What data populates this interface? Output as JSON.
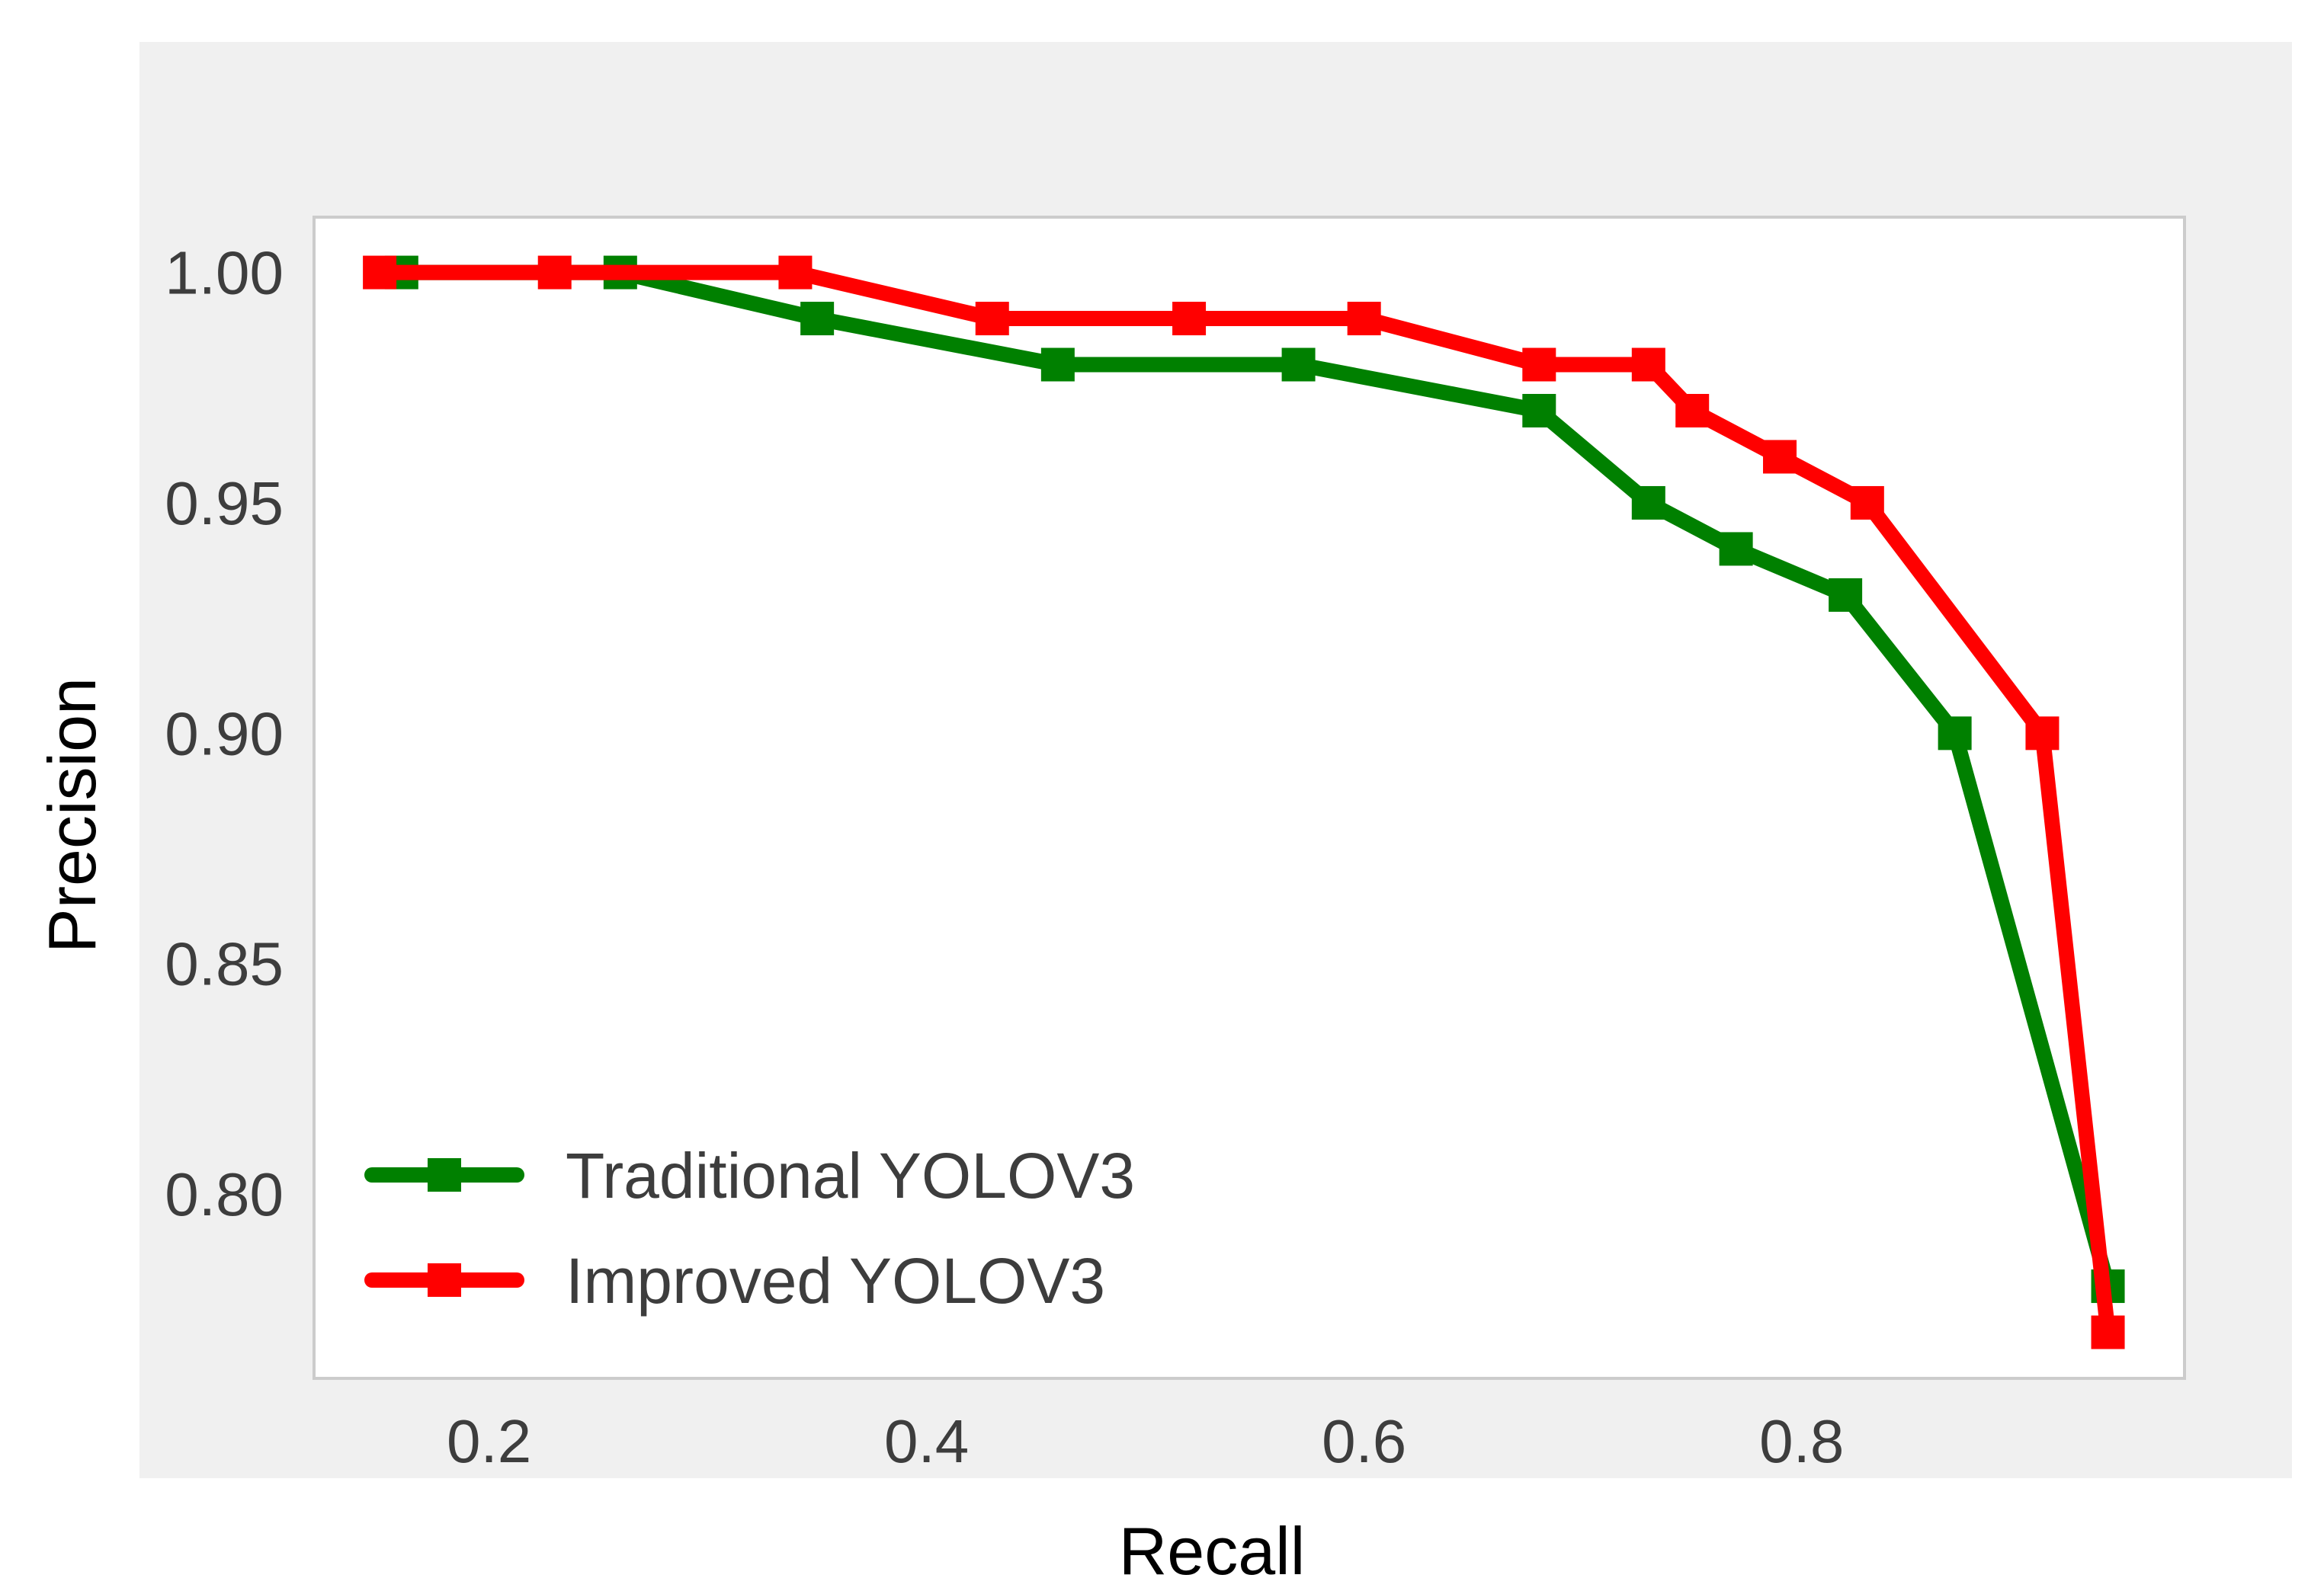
{
  "chart_data": {
    "type": "line",
    "xlabel": "Recall",
    "ylabel": "Precision",
    "xlim": [
      0.12,
      0.975
    ],
    "ylim": [
      0.76,
      1.012
    ],
    "xticks": [
      0.2,
      0.4,
      0.6,
      0.8
    ],
    "xtick_labels": [
      "0.2",
      "0.4",
      "0.6",
      "0.8"
    ],
    "yticks": [
      0.8,
      0.85,
      0.9,
      0.95,
      1.0
    ],
    "ytick_labels": [
      "0.80",
      "0.85",
      "0.90",
      "0.95",
      "1.00"
    ],
    "grid": false,
    "legend_position": "lower-left",
    "background_color": "#f0f0f0",
    "plot_area_color": "#ffffff",
    "series": [
      {
        "name": "Traditional YOLOV3",
        "color": "#008000",
        "marker": "square",
        "x": [
          0.16,
          0.26,
          0.35,
          0.46,
          0.57,
          0.68,
          0.73,
          0.77,
          0.82,
          0.87,
          0.94
        ],
        "y": [
          1.0,
          1.0,
          0.99,
          0.98,
          0.98,
          0.97,
          0.95,
          0.94,
          0.93,
          0.9,
          0.78
        ]
      },
      {
        "name": "Improved YOLOV3",
        "color": "#ff0000",
        "marker": "square",
        "x": [
          0.15,
          0.23,
          0.34,
          0.43,
          0.52,
          0.6,
          0.68,
          0.73,
          0.75,
          0.79,
          0.83,
          0.91,
          0.94
        ],
        "y": [
          1.0,
          1.0,
          1.0,
          0.99,
          0.99,
          0.99,
          0.98,
          0.98,
          0.97,
          0.96,
          0.95,
          0.9,
          0.77
        ]
      }
    ]
  }
}
